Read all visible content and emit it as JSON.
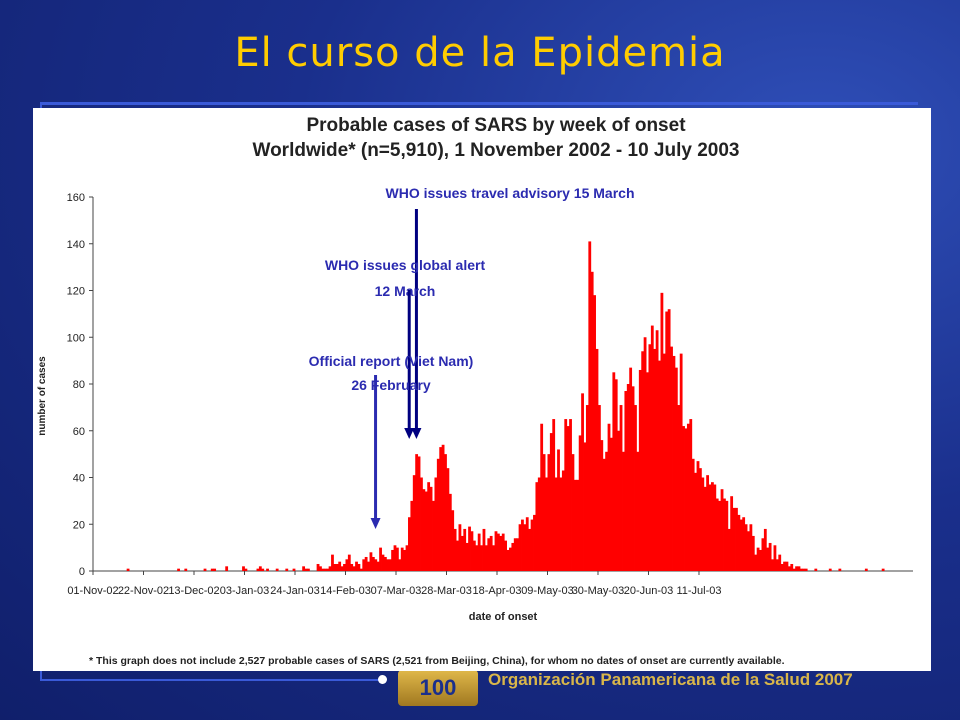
{
  "slide": {
    "title": "El curso de la Epidemia",
    "footer_org": "Organización Panamericana de la Salud 2007",
    "logo_text": "100"
  },
  "chart_data": {
    "type": "bar",
    "title": "Probable cases of SARS by week of onset",
    "subtitle": "Worldwide* (n=5,910), 1 November 2002 - 10 July 2003",
    "xlabel": "date of onset",
    "ylabel": "number of cases",
    "ylim": [
      0,
      160
    ],
    "yticks": [
      0,
      20,
      40,
      60,
      80,
      100,
      120,
      140,
      160
    ],
    "xticks": [
      "01-Nov-02",
      "22-Nov-02",
      "13-Dec-02",
      "03-Jan-03",
      "24-Jan-03",
      "14-Feb-03",
      "07-Mar-03",
      "28-Mar-03",
      "18-Apr-03",
      "09-May-03",
      "30-May-03",
      "20-Jun-03",
      "11-Jul-03"
    ],
    "bar_color": "#ff0000",
    "start_date": "01-Nov-02",
    "values": [
      0,
      0,
      0,
      0,
      0,
      0,
      0,
      0,
      0,
      0,
      0,
      0,
      0,
      0,
      1,
      0,
      0,
      0,
      0,
      0,
      0,
      0,
      0,
      0,
      0,
      0,
      0,
      0,
      0,
      0,
      0,
      0,
      0,
      0,
      0,
      1,
      0,
      0,
      1,
      0,
      0,
      0,
      0,
      0,
      0,
      0,
      1,
      0,
      0,
      1,
      1,
      0,
      0,
      0,
      0,
      2,
      0,
      0,
      0,
      0,
      0,
      0,
      2,
      1,
      0,
      0,
      0,
      0,
      1,
      2,
      1,
      0,
      1,
      0,
      0,
      0,
      1,
      0,
      0,
      0,
      1,
      0,
      0,
      1,
      0,
      0,
      0,
      2,
      1,
      1,
      0,
      0,
      0,
      3,
      2,
      1,
      1,
      1,
      2,
      7,
      3,
      3,
      4,
      2,
      3,
      5,
      7,
      3,
      2,
      4,
      3,
      1,
      5,
      6,
      4,
      8,
      6,
      5,
      4,
      10,
      7,
      6,
      5,
      5,
      9,
      11,
      10,
      5,
      10,
      9,
      11,
      23,
      30,
      41,
      50,
      49,
      40,
      35,
      34,
      38,
      36,
      30,
      40,
      48,
      53,
      54,
      50,
      44,
      33,
      26,
      18,
      13,
      20,
      15,
      18,
      12,
      19,
      17,
      13,
      11,
      16,
      11,
      18,
      11,
      14,
      15,
      11,
      17,
      16,
      15,
      16,
      13,
      9,
      10,
      12,
      14,
      14,
      20,
      22,
      20,
      23,
      18,
      22,
      24,
      38,
      40,
      63,
      50,
      40,
      50,
      59,
      65,
      40,
      52,
      40,
      43,
      65,
      62,
      65,
      50,
      39,
      39,
      58,
      76,
      55,
      71,
      141,
      128,
      118,
      95,
      71,
      56,
      48,
      51,
      63,
      57,
      85,
      82,
      60,
      71,
      51,
      77,
      80,
      87,
      79,
      71,
      51,
      86,
      94,
      100,
      85,
      97,
      105,
      95,
      103,
      90,
      119,
      93,
      111,
      112,
      96,
      92,
      87,
      71,
      93,
      62,
      61,
      63,
      65,
      48,
      42,
      47,
      44,
      40,
      36,
      41,
      37,
      38,
      37,
      31,
      30,
      35,
      31,
      30,
      18,
      32,
      27,
      27,
      24,
      22,
      23,
      20,
      17,
      20,
      15,
      7,
      10,
      9,
      14,
      18,
      10,
      12,
      5,
      11,
      5,
      7,
      3,
      4,
      4,
      2,
      3,
      1,
      2,
      2,
      1,
      1,
      1,
      0,
      0,
      0,
      1,
      0,
      0,
      0,
      0,
      0,
      1,
      0,
      0,
      0,
      1,
      0,
      0,
      0,
      0,
      0,
      0,
      0,
      0,
      0,
      0,
      1,
      0,
      0,
      0,
      0,
      0,
      0,
      1,
      0,
      0,
      0,
      0,
      0,
      0,
      0,
      0,
      0,
      0,
      0,
      0
    ],
    "annotations": [
      {
        "line1": "WHO issues travel advisory 15 March",
        "line2": "",
        "date": "15-Mar-03"
      },
      {
        "line1": "WHO issues global alert",
        "line2": "12 March",
        "date": "12-Mar-03"
      },
      {
        "line1": "Official report (Viet Nam)",
        "line2": "26 February",
        "date": "26-Feb-03"
      }
    ],
    "annotation_color": "#2b2bb0",
    "arrow_color": "#000080",
    "footnote": "* This graph does not include 2,527 probable cases of SARS (2,521 from Beijing, China), for whom no dates of onset are currently available."
  }
}
